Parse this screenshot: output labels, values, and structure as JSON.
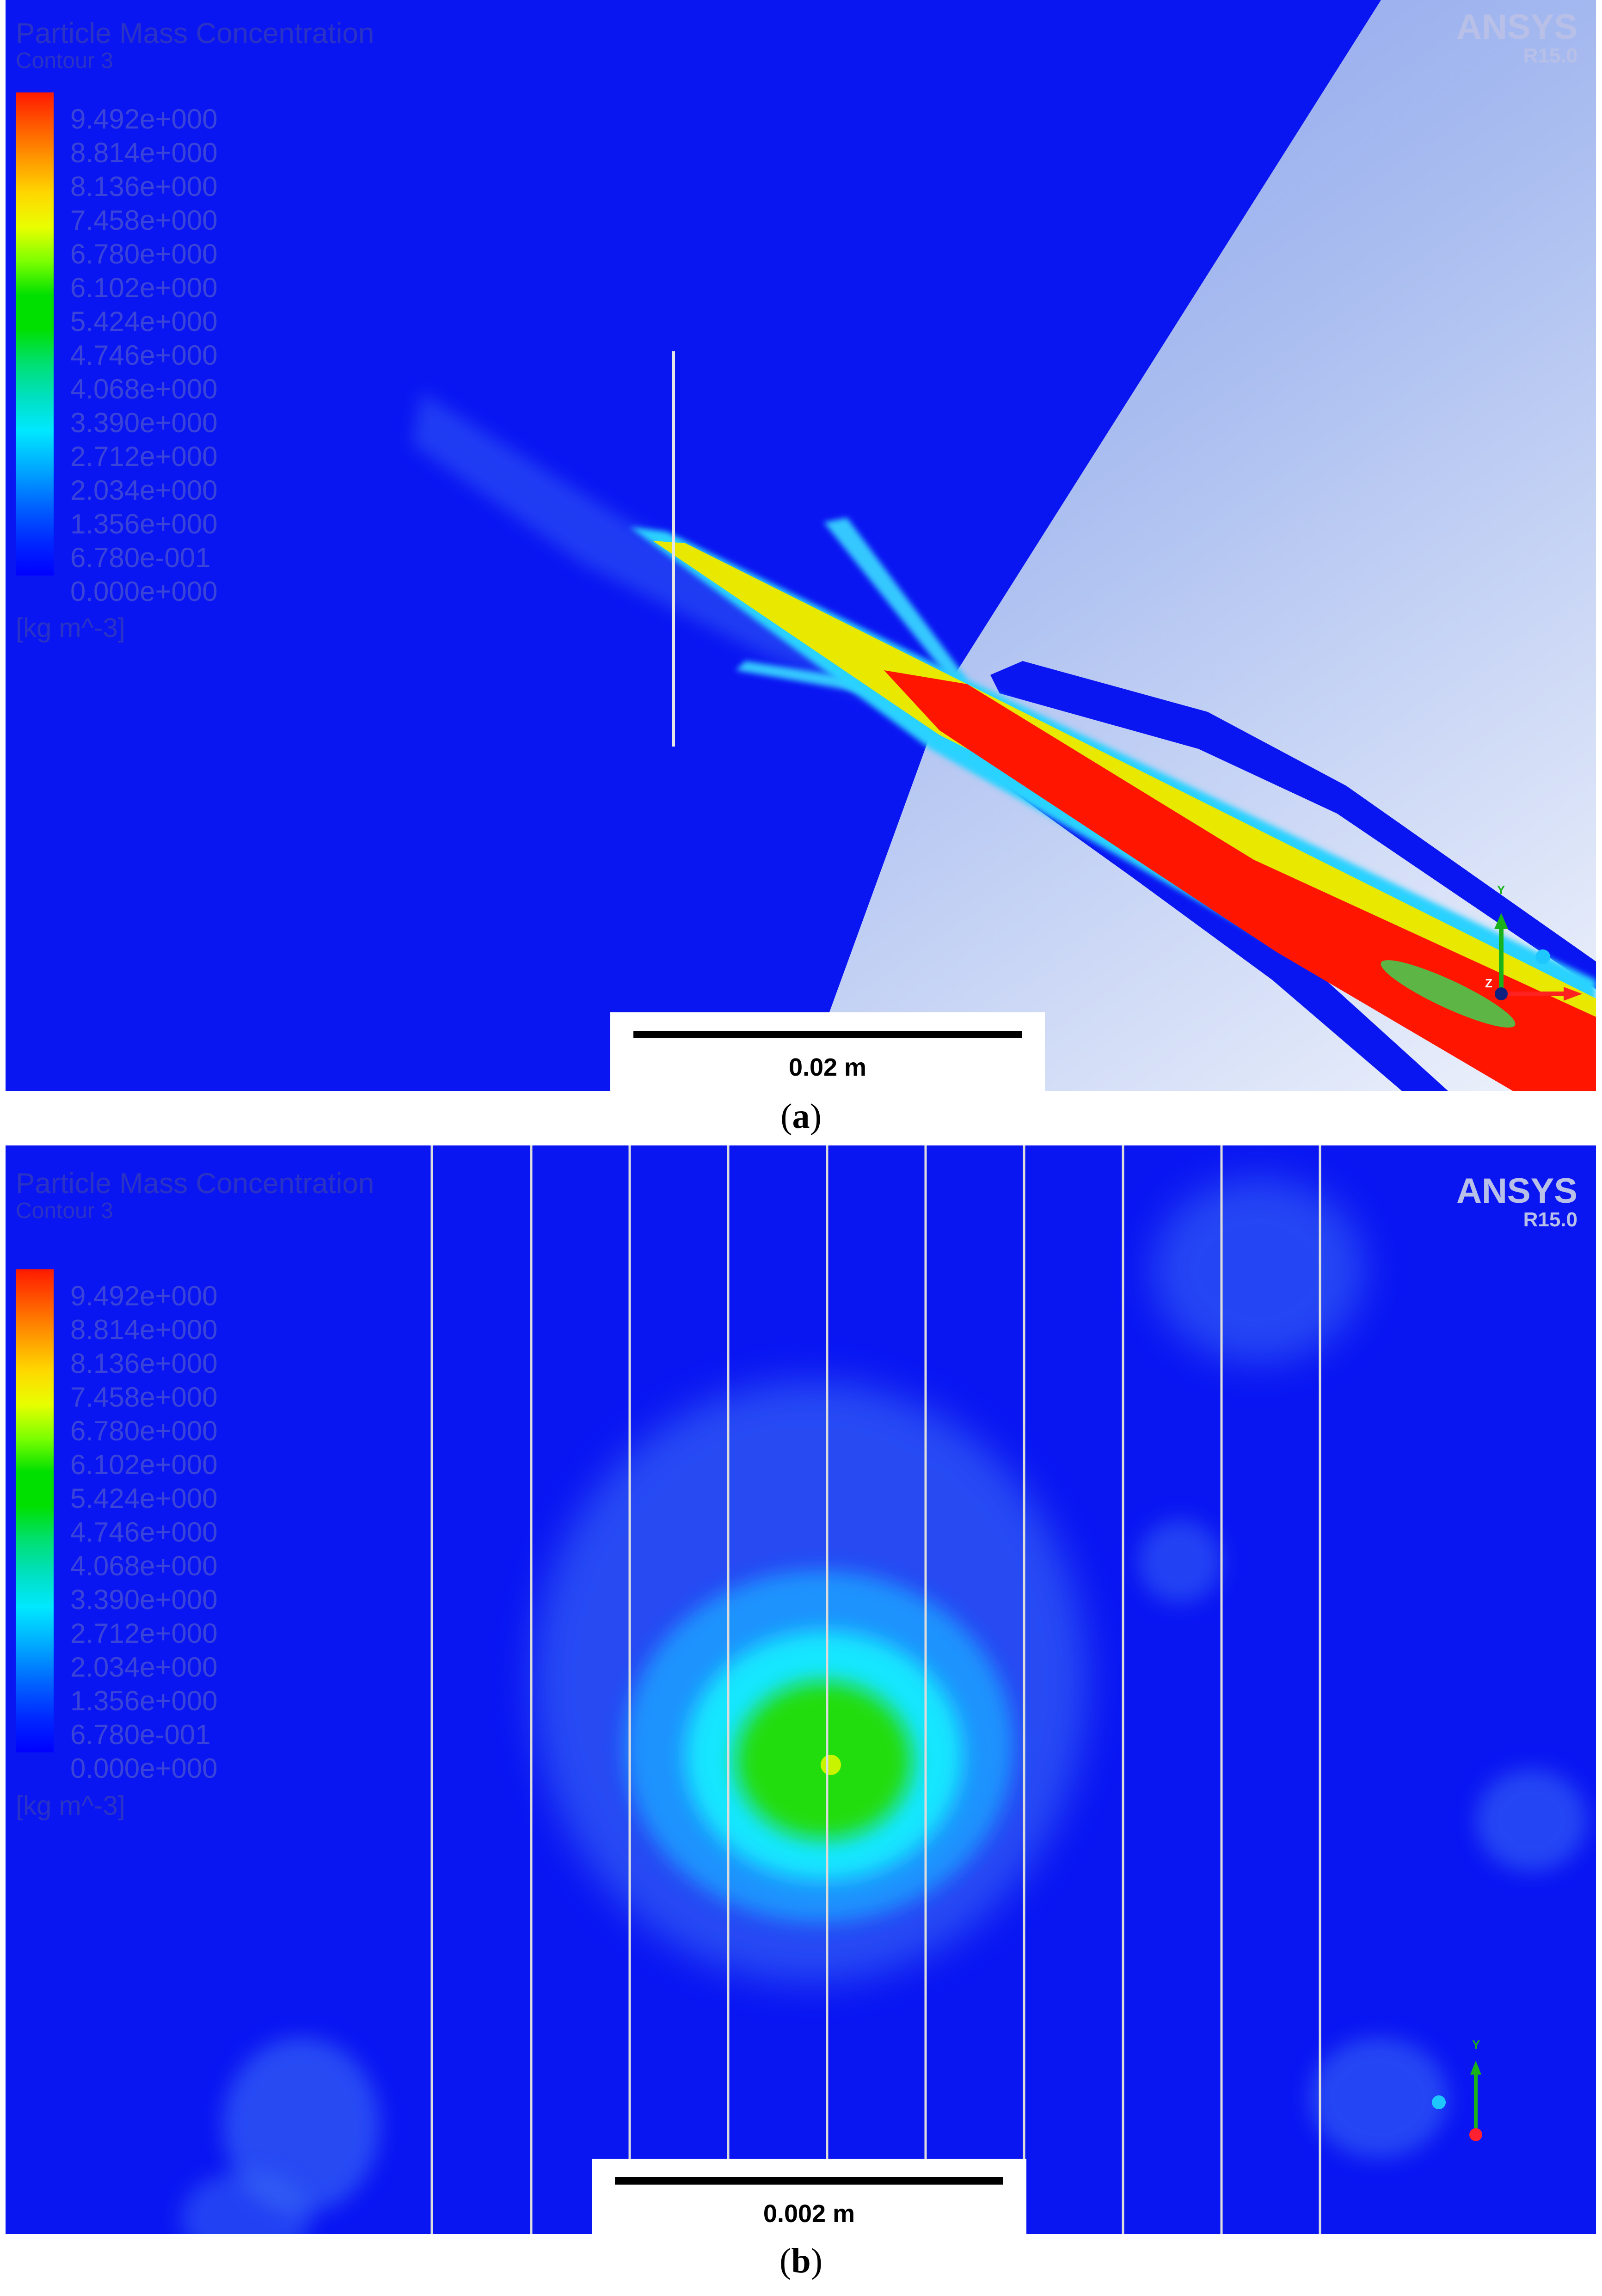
{
  "panels": [
    {
      "legend_title": "Particle Mass Concentration",
      "legend_subtitle": "Contour 3",
      "legend_ticks": [
        "9.492e+000",
        "8.814e+000",
        "8.136e+000",
        "7.458e+000",
        "6.780e+000",
        "6.102e+000",
        "5.424e+000",
        "4.746e+000",
        "4.068e+000",
        "3.390e+000",
        "2.712e+000",
        "2.034e+000",
        "1.356e+000",
        "6.780e-001",
        "0.000e+000"
      ],
      "units": "[kg m^-3]",
      "brand_name": "ANSYS",
      "brand_version": "R15.0",
      "scale_label": "0.02 m",
      "axis_y": "Y",
      "axis_z": "Z",
      "caption_letter": "a"
    },
    {
      "legend_title": "Particle Mass Concentration",
      "legend_subtitle": "Contour 3",
      "legend_ticks": [
        "9.492e+000",
        "8.814e+000",
        "8.136e+000",
        "7.458e+000",
        "6.780e+000",
        "6.102e+000",
        "5.424e+000",
        "4.746e+000",
        "4.068e+000",
        "3.390e+000",
        "2.712e+000",
        "2.034e+000",
        "1.356e+000",
        "6.780e-001",
        "0.000e+000"
      ],
      "units": "[kg m^-3]",
      "brand_name": "ANSYS",
      "brand_version": "R15.0",
      "scale_label": "0.002 m",
      "axis_y": "Y",
      "caption_letter": "b"
    }
  ],
  "colors": {
    "domain_blue": "#0a16f2",
    "legend_text": "#3a44d8",
    "hot_red": "#ff1500",
    "mid_green": "#22dd11",
    "cyan": "#00d8ff"
  }
}
